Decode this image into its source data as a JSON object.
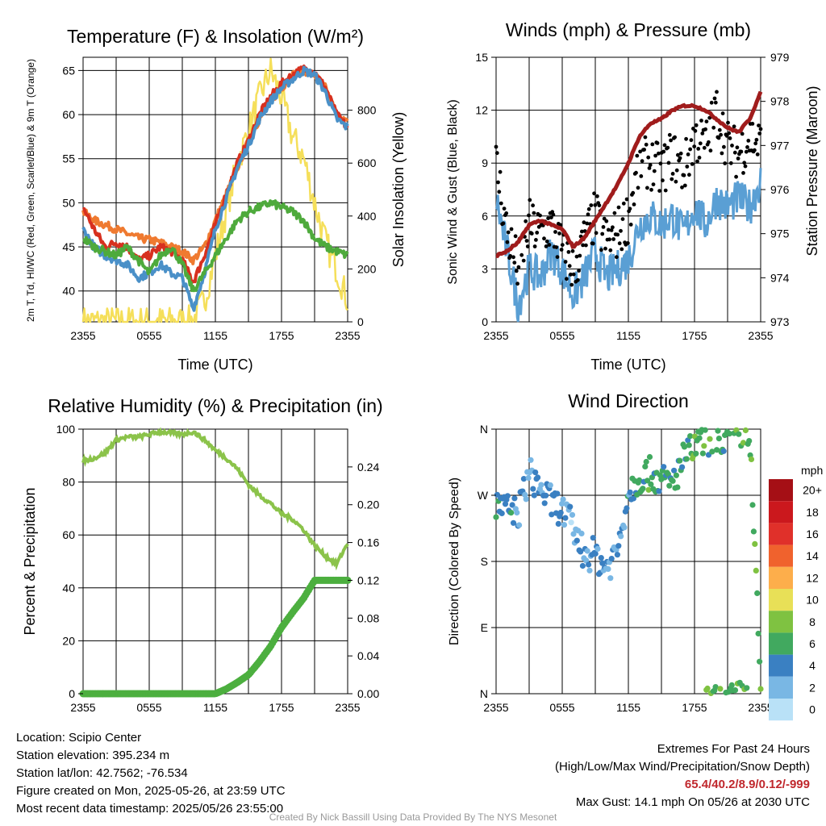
{
  "colors": {
    "temp": "#d7301f",
    "dewpoint": "#4eaa3c",
    "windchill": "#4a90c8",
    "temp9m": "#ef7a30",
    "solar": "#f5df5a",
    "gust": "#000000",
    "wind": "#5a9fd4",
    "pressure": "#a01c1c",
    "rh": "#8bc34a",
    "precip": "#4caf3f"
  },
  "chart_data": [
    {
      "type": "line",
      "title": "Temperature (F) & Insolation (W/m²)",
      "xlabel": "Time (UTC)",
      "ylabel": "2m T, Td, HI/WC (Red, Green, Scarlet/Blue) & 9m T (Orange)",
      "ylabel2": "Solar Insolation (Yellow)",
      "xticks": [
        "2355",
        "0555",
        "1155",
        "1755",
        "2355"
      ],
      "yticks": [
        40,
        45,
        50,
        55,
        60,
        65
      ],
      "yticks2": [
        0,
        200,
        400,
        600,
        800
      ],
      "ylim": [
        36.5,
        66.5
      ],
      "ylim2": [
        0,
        1000
      ],
      "x_hours": [
        0,
        1,
        2,
        3,
        4,
        5,
        6,
        7,
        8,
        9,
        10,
        11,
        12,
        13,
        14,
        15,
        16,
        17,
        18,
        19,
        20,
        21,
        22,
        23,
        24
      ],
      "series": [
        {
          "name": "Solar Insolation",
          "axis": "y2",
          "color": "#f5df5a",
          "values": [
            0,
            0,
            0,
            0,
            0,
            0,
            0,
            0,
            0,
            0,
            5,
            80,
            250,
            420,
            600,
            720,
            850,
            950,
            850,
            700,
            620,
            450,
            300,
            200,
            80
          ]
        },
        {
          "name": "9m T",
          "color": "#ef7a30",
          "values": [
            49,
            48,
            47.5,
            47,
            46.5,
            46,
            45.8,
            45.5,
            45,
            44.5,
            43.5,
            45,
            48,
            51,
            54,
            57,
            59.5,
            61.5,
            63,
            64.5,
            65,
            64.5,
            63,
            60,
            59
          ]
        },
        {
          "name": "2m T",
          "color": "#d7301f",
          "values": [
            49.5,
            47,
            45,
            45.5,
            45,
            43.5,
            44,
            45,
            44.5,
            43.5,
            41,
            44,
            47.5,
            51,
            54.5,
            57,
            60,
            62,
            63.5,
            64.5,
            65.2,
            64.8,
            63,
            60,
            58.5
          ]
        },
        {
          "name": "WC",
          "color": "#4a90c8",
          "values": [
            47,
            45,
            44,
            43.5,
            43,
            41.5,
            42,
            43,
            42,
            41.5,
            38,
            42,
            47,
            50.5,
            54,
            56.5,
            59.5,
            61.5,
            63,
            64,
            65,
            64.5,
            62.5,
            59.5,
            58.5
          ]
        },
        {
          "name": "Td",
          "color": "#4eaa3c",
          "values": [
            46,
            45,
            44.5,
            44,
            45,
            43.5,
            42,
            44,
            45,
            43,
            40,
            42,
            44,
            46,
            48,
            49,
            49.5,
            50,
            49.5,
            49,
            48,
            46,
            45,
            44.5,
            44
          ]
        }
      ]
    },
    {
      "type": "line",
      "title": "Winds (mph) & Pressure (mb)",
      "xlabel": "Time (UTC)",
      "ylabel": "Sonic Wind & Gust (Blue, Black)",
      "ylabel2": "Station Pressure (Maroon)",
      "xticks": [
        "2355",
        "0555",
        "1155",
        "1755",
        "2355"
      ],
      "yticks": [
        0,
        3,
        6,
        9,
        12,
        15
      ],
      "yticks2": [
        973,
        974,
        975,
        976,
        977,
        978,
        979
      ],
      "ylim": [
        0,
        15
      ],
      "ylim2": [
        973,
        979
      ],
      "x_hours": [
        0,
        1,
        2,
        3,
        4,
        5,
        6,
        7,
        8,
        9,
        10,
        11,
        12,
        13,
        14,
        15,
        16,
        17,
        18,
        19,
        20,
        21,
        22,
        23,
        24
      ],
      "series": [
        {
          "name": "Sonic Wind",
          "color": "#5a9fd4",
          "values": [
            7,
            4,
            1,
            3,
            2.5,
            4,
            3,
            1.5,
            2.5,
            4,
            2.5,
            3,
            3.5,
            5.5,
            6,
            5.5,
            6,
            5,
            6.5,
            5.5,
            7,
            6.5,
            7,
            6.5,
            8
          ]
        },
        {
          "name": "Gust",
          "color": "#000000",
          "values": [
            9,
            5,
            3,
            5.5,
            5,
            5.5,
            4,
            3,
            4.5,
            6,
            4.5,
            5,
            6,
            9,
            9,
            8.5,
            9.5,
            8.5,
            10.5,
            10,
            12,
            10,
            9.5,
            10.5,
            10
          ]
        },
        {
          "name": "Station Pressure",
          "axis": "y2",
          "color": "#a01c1c",
          "values": [
            974.5,
            974.6,
            974.8,
            975.2,
            975.3,
            975.2,
            975.1,
            974.7,
            974.9,
            975.3,
            975.7,
            976.1,
            976.6,
            977.2,
            977.5,
            977.6,
            977.8,
            977.9,
            977.9,
            977.8,
            977.6,
            977.4,
            977.3,
            977.6,
            978.2
          ]
        }
      ]
    },
    {
      "type": "line",
      "title": "Relative Humidity (%) & Precipitation (in)",
      "ylabel": "Percent & Precipitation",
      "xticks": [
        "2355",
        "0555",
        "1155",
        "1755",
        "2355"
      ],
      "yticks": [
        0,
        20,
        40,
        60,
        80,
        100
      ],
      "yticks2": [
        "0.00",
        "0.04",
        "0.08",
        "0.12",
        "0.16",
        "0.20",
        "0.24"
      ],
      "ylim": [
        0,
        100
      ],
      "ylim2": [
        0,
        0.28
      ],
      "x_hours": [
        0,
        1,
        2,
        3,
        4,
        5,
        6,
        7,
        8,
        9,
        10,
        11,
        12,
        13,
        14,
        15,
        16,
        17,
        18,
        19,
        20,
        21,
        22,
        23,
        24
      ],
      "series": [
        {
          "name": "Relative Humidity",
          "color": "#8bc34a",
          "values": [
            88,
            89,
            91,
            96,
            97,
            97,
            98,
            99,
            98.5,
            98,
            99,
            96,
            92,
            89,
            85,
            79,
            75,
            72,
            68,
            66,
            62,
            56,
            52,
            49,
            57
          ]
        },
        {
          "name": "Precipitation",
          "axis": "y2",
          "color": "#4caf3f",
          "values": [
            0,
            0,
            0,
            0,
            0,
            0,
            0,
            0,
            0,
            0,
            0,
            0,
            0,
            0.005,
            0.012,
            0.02,
            0.034,
            0.05,
            0.07,
            0.086,
            0.101,
            0.12,
            0.12,
            0.12,
            0.12
          ]
        }
      ]
    },
    {
      "type": "scatter",
      "title": "Wind Direction",
      "ylabel": "Direction (Colored By Speed)",
      "xticks": [
        "2355",
        "0555",
        "1155",
        "1755",
        "2355"
      ],
      "yticks": [
        "N",
        "E",
        "S",
        "W",
        "N"
      ],
      "ylim": [
        0,
        360
      ],
      "legend_title": "mph",
      "legend_labels": [
        "20+",
        "18",
        "16",
        "14",
        "12",
        "10",
        "8",
        "6",
        "4",
        "2",
        "0"
      ],
      "legend_colors": [
        "#a50f15",
        "#cb181d",
        "#e0302a",
        "#f0622d",
        "#fdae4b",
        "#e8e057",
        "#7fc241",
        "#41a95f",
        "#3a80c2",
        "#79b7e4",
        "#b9e1f7"
      ],
      "x_hours": [
        0,
        1,
        2,
        3,
        4,
        5,
        6,
        7,
        8,
        9,
        10,
        11,
        12,
        13,
        14,
        15,
        16,
        17,
        18,
        19,
        20,
        21,
        22,
        23,
        24
      ],
      "directions": [
        255,
        250,
        245,
        300,
        280,
        260,
        250,
        225,
        190,
        190,
        170,
        195,
        275,
        295,
        300,
        290,
        285,
        320,
        335,
        345,
        350,
        348,
        355,
        358,
        5
      ],
      "speeds": [
        5,
        4,
        3,
        2,
        3,
        4,
        3,
        2,
        3,
        4,
        3,
        3,
        4,
        6,
        6,
        5,
        6,
        5,
        7,
        6,
        7,
        6,
        7,
        7,
        8
      ]
    }
  ],
  "info": {
    "location": "Location: Scipio Center",
    "elevation": "Station elevation: 395.234 m",
    "latlon": "Station lat/lon: 42.7562; -76.534",
    "created": "Figure created on Mon, 2025-05-26, at 23:59 UTC",
    "timestamp": "Most recent data timestamp: 2025/05/26 23:55:00",
    "extremes_title": "Extremes For Past 24 Hours",
    "extremes_key": "(High/Low/Max Wind/Precipitation/Snow Depth)",
    "extremes_values": "65.4/40.2/8.9/0.12/-999",
    "max_gust": "Max Gust: 14.1 mph On 05/26 at 2030 UTC"
  },
  "footer": "Created By Nick Bassill Using Data Provided By The NYS Mesonet"
}
